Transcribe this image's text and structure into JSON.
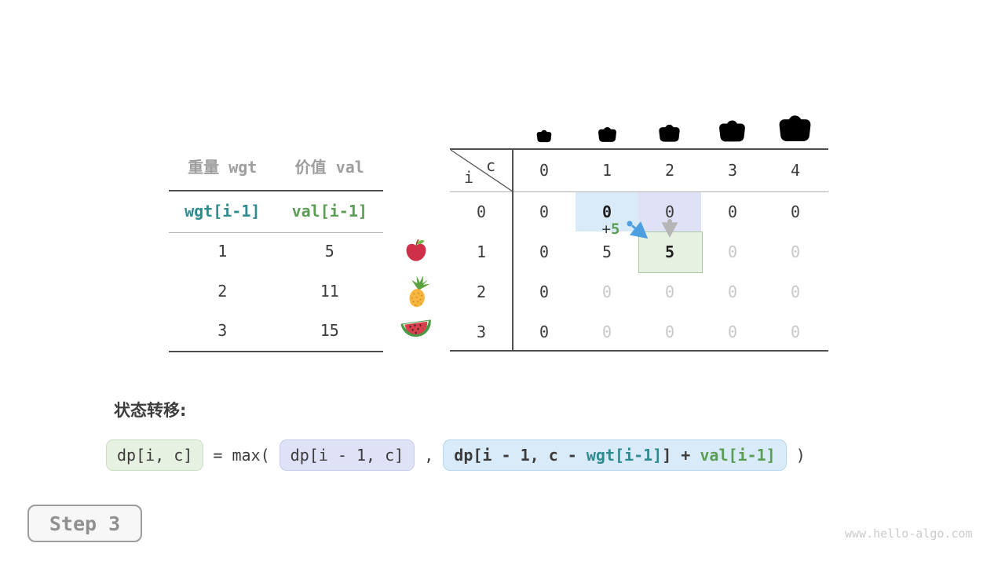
{
  "colors": {
    "teal": "#2e8b8e",
    "green": "#5a9e54",
    "dark": "#3b3b3b",
    "gray_header": "#9e9e9e",
    "dim_value": "#c9c9c9",
    "line_dark": "#4f4f4f",
    "line_light": "#b3b3b3",
    "hl_blue": "#d9eaf8",
    "hl_lavender": "#dfe2f7",
    "hl_green": "#e7f1e1",
    "hl_green_border": "#abc9a2",
    "arrow_blue": "#4d9fe0",
    "arrow_gray": "#b5b5b5",
    "bag_purple": "#9d63d3",
    "bag_handle": "#f2b34c",
    "step_text": "#909090",
    "watermark": "#cbcbcb"
  },
  "items_table": {
    "headers": [
      "重量 wgt",
      "价值 val"
    ],
    "var_row": [
      "wgt[i-1]",
      "val[i-1]"
    ],
    "rows": [
      {
        "wgt": "1",
        "val": "5",
        "fruit": "apple-icon"
      },
      {
        "wgt": "2",
        "val": "11",
        "fruit": "pineapple-icon"
      },
      {
        "wgt": "3",
        "val": "15",
        "fruit": "watermelon-icon"
      }
    ]
  },
  "dp_table": {
    "corner": {
      "col_var": "c",
      "row_var": "i"
    },
    "col_headers": [
      "0",
      "1",
      "2",
      "3",
      "4"
    ],
    "row_headers": [
      "0",
      "1",
      "2",
      "3"
    ],
    "cells": [
      [
        "0",
        "0",
        "0",
        "0",
        "0"
      ],
      [
        "0",
        "5",
        "5",
        "0",
        "0"
      ],
      [
        "0",
        "0",
        "0",
        "0",
        "0"
      ],
      [
        "0",
        "0",
        "0",
        "0",
        "0"
      ]
    ],
    "cell_styles": [
      [
        "n",
        "b",
        "n",
        "n",
        "n"
      ],
      [
        "n",
        "n",
        "b",
        "g",
        "g"
      ],
      [
        "n",
        "g",
        "g",
        "g",
        "g"
      ],
      [
        "n",
        "g",
        "g",
        "g",
        "g"
      ]
    ],
    "annotation": {
      "plus_prefix": "+",
      "plus_value": "5",
      "highlights": [
        {
          "row": 0,
          "col": 1,
          "style": "blue"
        },
        {
          "row": 0,
          "col": 2,
          "style": "lavender"
        },
        {
          "row": 1,
          "col": 2,
          "style": "green"
        }
      ]
    },
    "capacity_icons": [
      "bag-icon-capacity-0",
      "bag-icon-capacity-1",
      "bag-icon-capacity-2",
      "bag-icon-capacity-3",
      "bag-icon-capacity-4"
    ]
  },
  "formula": {
    "heading": "状态转移:",
    "lhs": "dp[i, c]",
    "op": " = max( ",
    "option_keep": "dp[i - 1, c]",
    "comma": " , ",
    "option_take": {
      "pre": "dp[i - 1, c - ",
      "wgt": "wgt[i-1]",
      "mid": "] + ",
      "val": "val[i-1]"
    },
    "close": " )"
  },
  "step_badge": "Step 3",
  "watermark": "www.hello-algo.com"
}
